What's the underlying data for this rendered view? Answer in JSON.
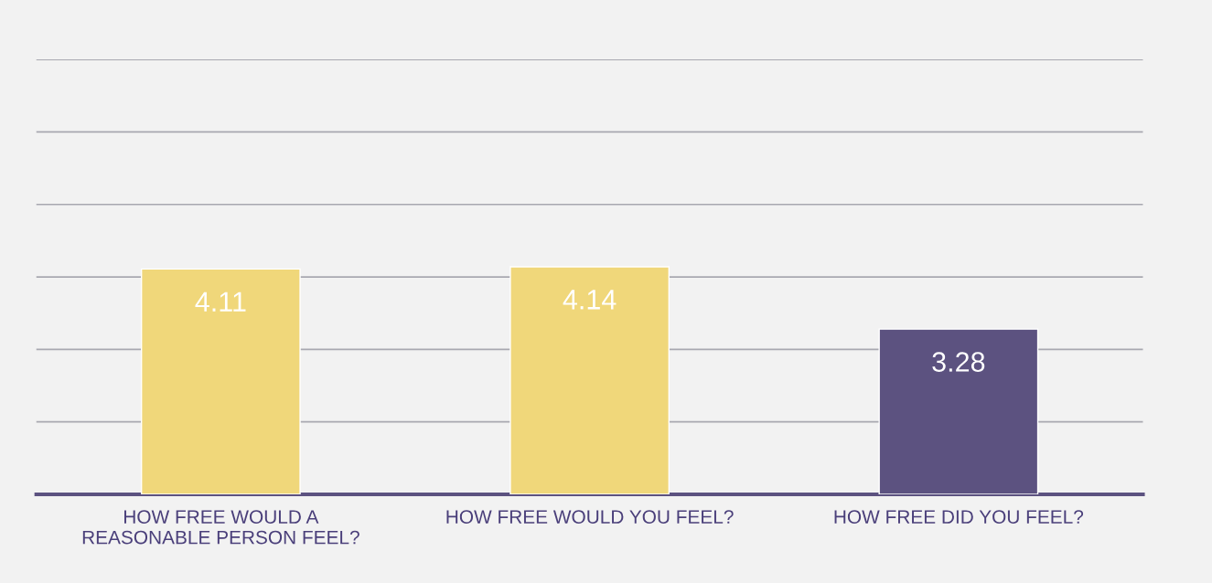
{
  "chart_data": {
    "type": "bar",
    "categories": [
      "HOW FREE WOULD A\nREASONABLE PERSON FEEL?",
      "HOW FREE WOULD YOU FEEL?",
      "HOW FREE DID YOU FEEL?"
    ],
    "values": [
      4.11,
      4.14,
      3.28
    ],
    "colors": [
      "#f0d77a",
      "#f0d77a",
      "#5c5280"
    ],
    "data_labels": true,
    "ylim": [
      1,
      7
    ],
    "yticks": [
      {
        "value": 1,
        "label": null
      },
      {
        "value": 2,
        "label": null
      },
      {
        "value": 3,
        "label": null
      },
      {
        "value": 4,
        "label": null
      },
      {
        "value": 5,
        "label": null
      },
      {
        "value": 6,
        "label": null
      },
      {
        "value": 7,
        "label": null
      }
    ],
    "grid": "y",
    "tick_labels": "x"
  }
}
